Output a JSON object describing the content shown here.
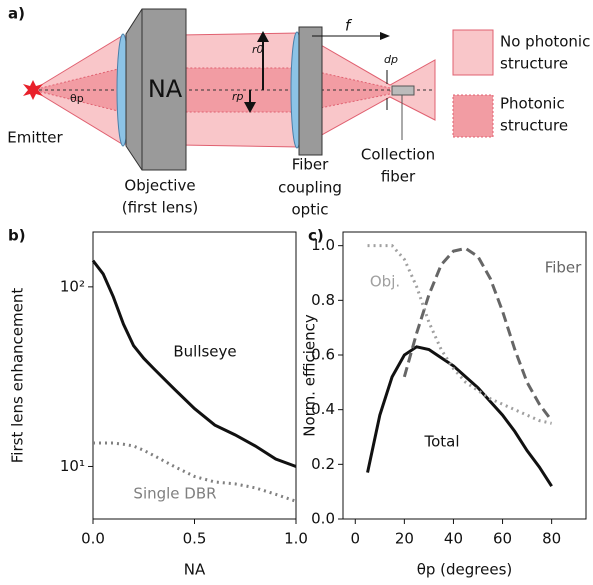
{
  "panel_labels": [
    "a)",
    "b)",
    "c)"
  ],
  "diagram": {
    "emitter": "Emitter",
    "objective_na": "NA",
    "theta": "θp",
    "r0": "r0",
    "rp": "rp",
    "f": "f",
    "dp": "dp",
    "objective_caption": [
      "Objective",
      "(first lens)"
    ],
    "fiber_optic_caption": [
      "Fiber",
      "coupling",
      "optic"
    ],
    "collection_caption": [
      "Collection",
      "fiber"
    ],
    "legend": [
      {
        "label": [
          "No photonic",
          "structure"
        ],
        "color": "#f9c6c9"
      },
      {
        "label": [
          "Photonic",
          "structure"
        ],
        "color": "#f29ca3"
      }
    ]
  },
  "chart_data": [
    {
      "type": "line",
      "xlabel": "NA",
      "ylabel": "First lens enhancement",
      "yscale": "log",
      "x": [
        0,
        0.05,
        0.1,
        0.15,
        0.2,
        0.25,
        0.3,
        0.4,
        0.5,
        0.6,
        0.7,
        0.8,
        0.9,
        1.0
      ],
      "series": [
        {
          "name": "Bullseye",
          "color": "#111111",
          "style": "solid",
          "values": [
            140,
            118,
            88,
            62,
            47,
            40,
            35,
            27,
            21,
            17,
            15,
            13,
            11,
            10
          ]
        },
        {
          "name": "Single DBR",
          "color": "#808080",
          "style": "dotted",
          "values": [
            13.5,
            13.5,
            13.5,
            13.3,
            13,
            12.3,
            11.5,
            10,
            8.8,
            8.2,
            8,
            7.6,
            7,
            6.4
          ]
        }
      ],
      "xlim": [
        0,
        1
      ],
      "ylim": [
        5.1,
        202
      ],
      "xticks": [
        {
          "value": 0,
          "label": "0.0"
        },
        0.5,
        {
          "value": 1,
          "label": "1.0"
        }
      ],
      "yticks": [
        {
          "value": 10,
          "label": "10¹"
        },
        {
          "value": 100,
          "label": "10²"
        }
      ]
    },
    {
      "type": "line",
      "xlabel": "θp (degrees)",
      "ylabel": "Norm. efficiency",
      "x": [
        5,
        10,
        15,
        20,
        25,
        30,
        35,
        40,
        45,
        50,
        55,
        60,
        65,
        70,
        75,
        80
      ],
      "series": [
        {
          "name": "Total",
          "color": "#111111",
          "style": "solid",
          "values": [
            0.17,
            0.38,
            0.52,
            0.6,
            0.63,
            0.62,
            0.59,
            0.56,
            0.52,
            0.48,
            0.43,
            0.38,
            0.32,
            0.25,
            0.19,
            0.12
          ]
        },
        {
          "name": "Obj.",
          "color": "#a0a0a0",
          "style": "dotted",
          "values": [
            1.0,
            1.0,
            1.0,
            0.95,
            0.85,
            0.72,
            0.62,
            0.55,
            0.5,
            0.47,
            0.44,
            0.42,
            0.4,
            0.38,
            0.36,
            0.35
          ]
        },
        {
          "name": "Fiber",
          "color": "#666666",
          "style": "dashed",
          "values": [
            null,
            null,
            null,
            0.52,
            0.68,
            0.82,
            0.93,
            0.98,
            0.99,
            0.96,
            0.88,
            0.76,
            0.62,
            0.5,
            0.42,
            0.36
          ]
        }
      ],
      "xlim": [
        -5,
        94
      ],
      "ylim": [
        0,
        1.05
      ],
      "xticks": [
        0,
        20,
        40,
        60,
        80
      ],
      "yticks": [
        {
          "value": 0,
          "label": "0.0"
        },
        0.2,
        0.4,
        0.6,
        0.8,
        {
          "value": 1,
          "label": "1.0"
        }
      ]
    }
  ]
}
